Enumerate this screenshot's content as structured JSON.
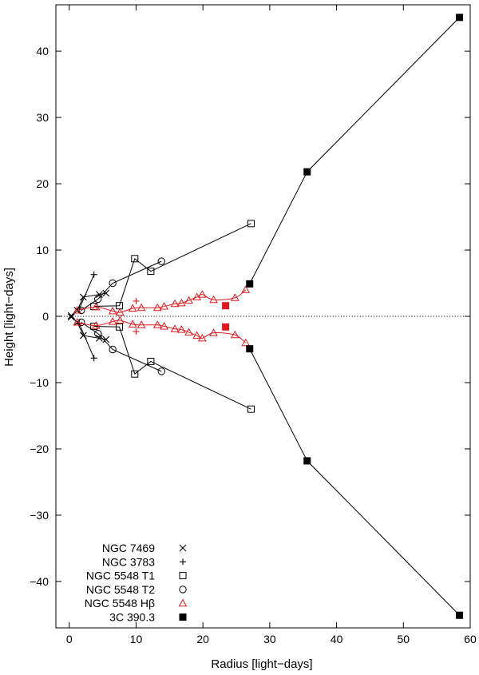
{
  "chart_data": {
    "type": "scatter",
    "title": "",
    "xlabel": "Radius  [light−days]",
    "ylabel": "Height  [light−days]",
    "xlim": [
      -2,
      60
    ],
    "ylim": [
      -47,
      47
    ],
    "xticks": [
      0,
      10,
      20,
      30,
      40,
      50,
      60
    ],
    "yticks": [
      -40,
      -30,
      -20,
      -10,
      0,
      10,
      20,
      30,
      40
    ],
    "xtick_labels": [
      "0",
      "10",
      "20",
      "30",
      "40",
      "50",
      "60"
    ],
    "ytick_labels": [
      "−40",
      "−30",
      "−20",
      "−10",
      "0",
      "10",
      "20",
      "30",
      "40"
    ],
    "reference_line": {
      "y": 0,
      "style": "dotted"
    },
    "legend_position": "bottom-left",
    "series": [
      {
        "name": "NGC 7469",
        "marker": "x",
        "color": "#000000",
        "upper": [
          [
            0.3,
            0.1
          ],
          [
            1.2,
            0.9
          ],
          [
            2.1,
            2.9
          ],
          [
            4.5,
            3.3
          ],
          [
            5.5,
            3.5
          ]
        ],
        "lower": [
          [
            0.3,
            -0.1
          ],
          [
            1.2,
            -0.9
          ],
          [
            2.1,
            -2.9
          ],
          [
            4.5,
            -3.3
          ],
          [
            5.5,
            -3.5
          ]
        ]
      },
      {
        "name": "NGC 3783",
        "marker": "plus",
        "color": "#000000",
        "upper": [
          [
            1.5,
            1.1
          ],
          [
            3.7,
            6.3
          ]
        ],
        "lower": [
          [
            1.5,
            -1.1
          ],
          [
            3.7,
            -6.3
          ]
        ]
      },
      {
        "name": "NGC 5548 T1",
        "marker": "open-square",
        "color": "#000000",
        "upper": [
          [
            3.7,
            1.5
          ],
          [
            7.5,
            1.6
          ],
          [
            9.8,
            8.7
          ],
          [
            12.2,
            6.8
          ],
          [
            27.2,
            14.0
          ]
        ],
        "lower": [
          [
            3.7,
            -1.5
          ],
          [
            7.5,
            -1.6
          ],
          [
            9.8,
            -8.7
          ],
          [
            12.2,
            -6.8
          ],
          [
            27.2,
            -14.0
          ]
        ]
      },
      {
        "name": "NGC 5548 T2",
        "marker": "open-circle",
        "color": "#000000",
        "upper": [
          [
            1.8,
            0.9
          ],
          [
            4.3,
            2.6
          ],
          [
            6.5,
            5.0
          ],
          [
            13.8,
            8.3
          ]
        ],
        "lower": [
          [
            1.8,
            -0.9
          ],
          [
            4.3,
            -2.6
          ],
          [
            6.5,
            -5.0
          ],
          [
            13.8,
            -8.3
          ]
        ]
      },
      {
        "name": "NGC 5548 Hβ",
        "marker": "open-triangle",
        "color": "#e0191d",
        "upper": [
          [
            1.2,
            0.9
          ],
          [
            4.0,
            1.4
          ],
          [
            6.5,
            0.8
          ],
          [
            7.6,
            0.6
          ],
          [
            9.5,
            1.2
          ],
          [
            10.8,
            1.3
          ],
          [
            13.2,
            1.3
          ],
          [
            14.2,
            1.5
          ],
          [
            15.8,
            1.9
          ],
          [
            16.8,
            2.0
          ],
          [
            17.9,
            2.4
          ],
          [
            19.1,
            2.9
          ],
          [
            19.9,
            3.3
          ],
          [
            21.6,
            2.5
          ],
          [
            24.8,
            2.8
          ],
          [
            26.4,
            4.0
          ]
        ],
        "lower": [
          [
            1.2,
            -0.9
          ],
          [
            4.0,
            -1.4
          ],
          [
            6.5,
            -0.8
          ],
          [
            7.6,
            -0.6
          ],
          [
            9.5,
            -1.2
          ],
          [
            10.8,
            -1.3
          ],
          [
            13.2,
            -1.3
          ],
          [
            14.2,
            -1.5
          ],
          [
            15.8,
            -1.9
          ],
          [
            16.8,
            -2.0
          ],
          [
            17.9,
            -2.4
          ],
          [
            19.1,
            -2.9
          ],
          [
            19.9,
            -3.3
          ],
          [
            21.6,
            -2.5
          ],
          [
            24.8,
            -2.8
          ],
          [
            26.4,
            -4.0
          ]
        ],
        "extra_markers": [
          {
            "marker": "plus",
            "points": [
              [
                10.0,
                2.3
              ],
              [
                10.0,
                -2.3
              ]
            ]
          },
          {
            "marker": "filled-square",
            "points": [
              [
                23.4,
                1.6
              ],
              [
                23.4,
                -1.6
              ]
            ]
          }
        ]
      },
      {
        "name": "3C 390.3",
        "marker": "filled-square",
        "color": "#000000",
        "upper": [
          [
            27.0,
            4.9
          ],
          [
            35.6,
            21.8
          ],
          [
            58.4,
            45.1
          ]
        ],
        "lower": [
          [
            27.0,
            -4.9
          ],
          [
            35.6,
            -21.8
          ],
          [
            58.4,
            -45.1
          ]
        ]
      }
    ]
  }
}
